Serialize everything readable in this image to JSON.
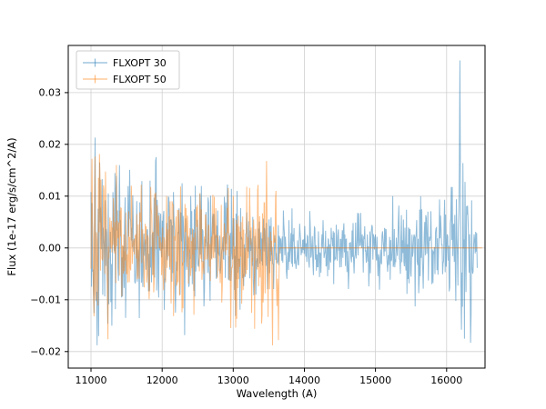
{
  "chart_data": {
    "type": "line",
    "title": "",
    "xlabel": "Wavelength (A)",
    "ylabel": "Flux (1e-17 erg/s/cm^2/A)",
    "xlim": [
      10680,
      16540
    ],
    "ylim": [
      -0.0232,
      0.0391
    ],
    "xticks": [
      11000,
      12000,
      13000,
      14000,
      15000,
      16000
    ],
    "yticks": [
      -0.02,
      -0.01,
      0.0,
      0.01,
      0.02,
      0.03
    ],
    "grid": true,
    "grid_color": "#d0d0d0",
    "spine_color": "#000000",
    "background": "#ffffff",
    "legend": {
      "position": "upper left",
      "entries": [
        "FLXOPT 30",
        "FLXOPT 50"
      ]
    },
    "series": [
      {
        "name": "FLXOPT 30",
        "color": "#1f77b4",
        "opacity": 0.5,
        "x_start": 11000,
        "x_end": 16430,
        "n": 760,
        "seed": 42,
        "amplitude_profile": [
          [
            11000,
            0.013
          ],
          [
            11300,
            0.0085
          ],
          [
            12200,
            0.0075
          ],
          [
            13200,
            0.006
          ],
          [
            13700,
            0.0045
          ],
          [
            14000,
            0.0032
          ],
          [
            14500,
            0.003
          ],
          [
            14900,
            0.0045
          ],
          [
            15600,
            0.005
          ],
          [
            16050,
            0.006
          ],
          [
            16150,
            0.013
          ],
          [
            16260,
            0.012
          ],
          [
            16430,
            0.007
          ]
        ],
        "spikes": [
          [
            11055,
            0.0213
          ],
          [
            11085,
            -0.0188
          ],
          [
            11120,
            0.0165
          ],
          [
            11400,
            0.016
          ],
          [
            12280,
            0.0125
          ],
          [
            13050,
            0.011
          ],
          [
            16185,
            0.0362
          ],
          [
            16210,
            -0.0158
          ]
        ],
        "zero_after": null
      },
      {
        "name": "FLXOPT 50",
        "color": "#ff7f0e",
        "opacity": 0.5,
        "x_start": 11000,
        "x_end": 13650,
        "n": 380,
        "seed": 7,
        "amplitude_profile": [
          [
            11000,
            0.011
          ],
          [
            11250,
            0.0075
          ],
          [
            12000,
            0.0065
          ],
          [
            12800,
            0.007
          ],
          [
            13200,
            0.008
          ],
          [
            13450,
            0.0095
          ],
          [
            13650,
            0.011
          ]
        ],
        "spikes": [
          [
            11015,
            0.0172
          ],
          [
            11045,
            -0.0132
          ],
          [
            13340,
            0.0112
          ],
          [
            13470,
            0.0168
          ],
          [
            13555,
            -0.0188
          ],
          [
            13635,
            -0.0178
          ]
        ],
        "zero_after": [
          13650,
          16500
        ]
      }
    ]
  }
}
